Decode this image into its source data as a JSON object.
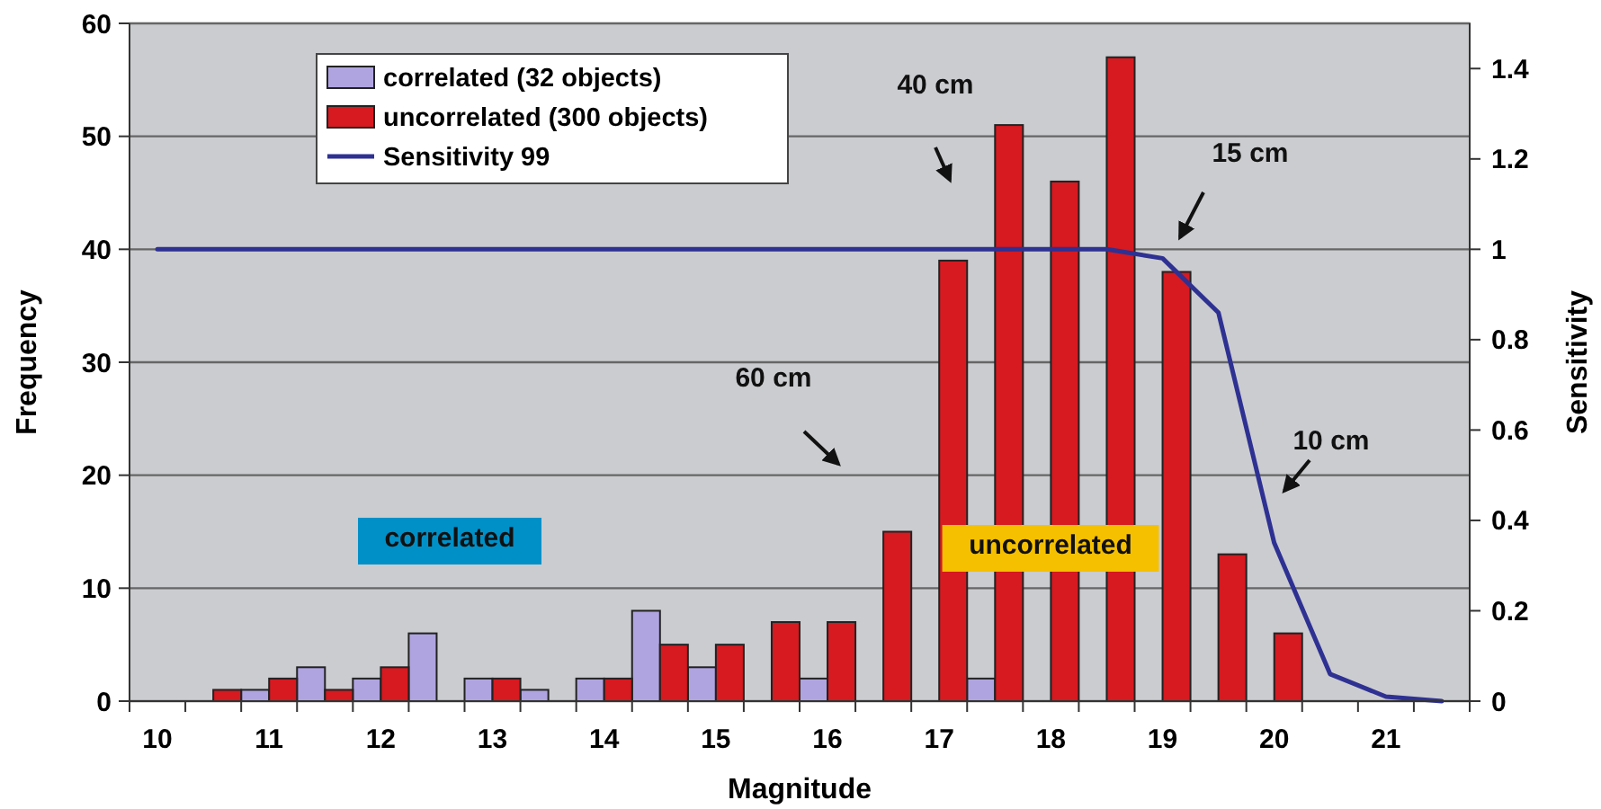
{
  "chart_data": {
    "type": "bar",
    "xlabel": "Magnitude",
    "ylabel": "Frequency",
    "y2label": "Sensitivity",
    "categories": [
      "10",
      null,
      "11",
      null,
      "12",
      null,
      "13",
      null,
      "14",
      null,
      "15",
      null,
      "16",
      null,
      "17",
      null,
      "18",
      null,
      "19",
      null,
      "20",
      null,
      "21",
      null
    ],
    "series": [
      {
        "name": "correlated (32 objects)",
        "color": "#b0a4e0",
        "values": [
          0,
          0,
          1,
          3,
          2,
          6,
          2,
          1,
          2,
          8,
          3,
          0,
          2,
          0,
          0,
          2,
          0,
          0,
          0,
          0,
          0,
          0,
          0,
          0
        ]
      },
      {
        "name": "uncorrelated (300 objects)",
        "color": "#d71920",
        "values": [
          0,
          1,
          2,
          1,
          3,
          0,
          2,
          0,
          2,
          5,
          5,
          7,
          7,
          15,
          39,
          51,
          46,
          57,
          38,
          13,
          6,
          0,
          0,
          0
        ]
      },
      {
        "name": "Sensitivity 99",
        "type": "line",
        "axis": "y2",
        "color": "#2e3192",
        "values": [
          1,
          1,
          1,
          1,
          1,
          1,
          1,
          1,
          1,
          1,
          1,
          1,
          1,
          1,
          1,
          1,
          1,
          1,
          0.98,
          0.86,
          0.35,
          0.06,
          0.01,
          0
        ]
      }
    ],
    "ylim": [
      0,
      60
    ],
    "yticks": [
      0,
      10,
      20,
      30,
      40,
      50,
      60
    ],
    "y2lim": [
      0,
      1.5
    ],
    "y2ticks": [
      0,
      0.2,
      0.4,
      0.6,
      0.8,
      1,
      1.2,
      1.4
    ],
    "grid": "y",
    "legend": "top left",
    "annotations": [
      "40 cm",
      "60 cm",
      "15 cm",
      "10 cm",
      "correlated",
      "uncorrelated"
    ]
  }
}
